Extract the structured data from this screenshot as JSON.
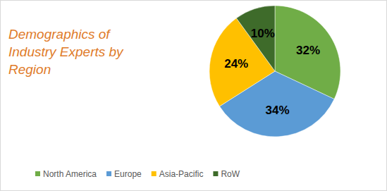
{
  "chart_data": {
    "type": "pie",
    "title": "Demographics of Industry Experts by Region",
    "categories": [
      "North America",
      "Europe",
      "Asia-Pacific",
      "RoW"
    ],
    "values": [
      32,
      34,
      24,
      10
    ],
    "value_labels": [
      "32%",
      "34%",
      "24%",
      "10%"
    ],
    "colors": [
      "#70ad47",
      "#5b9bd5",
      "#ffc000",
      "#3e6b2a"
    ],
    "data_labels": true,
    "legend": "bottom"
  }
}
